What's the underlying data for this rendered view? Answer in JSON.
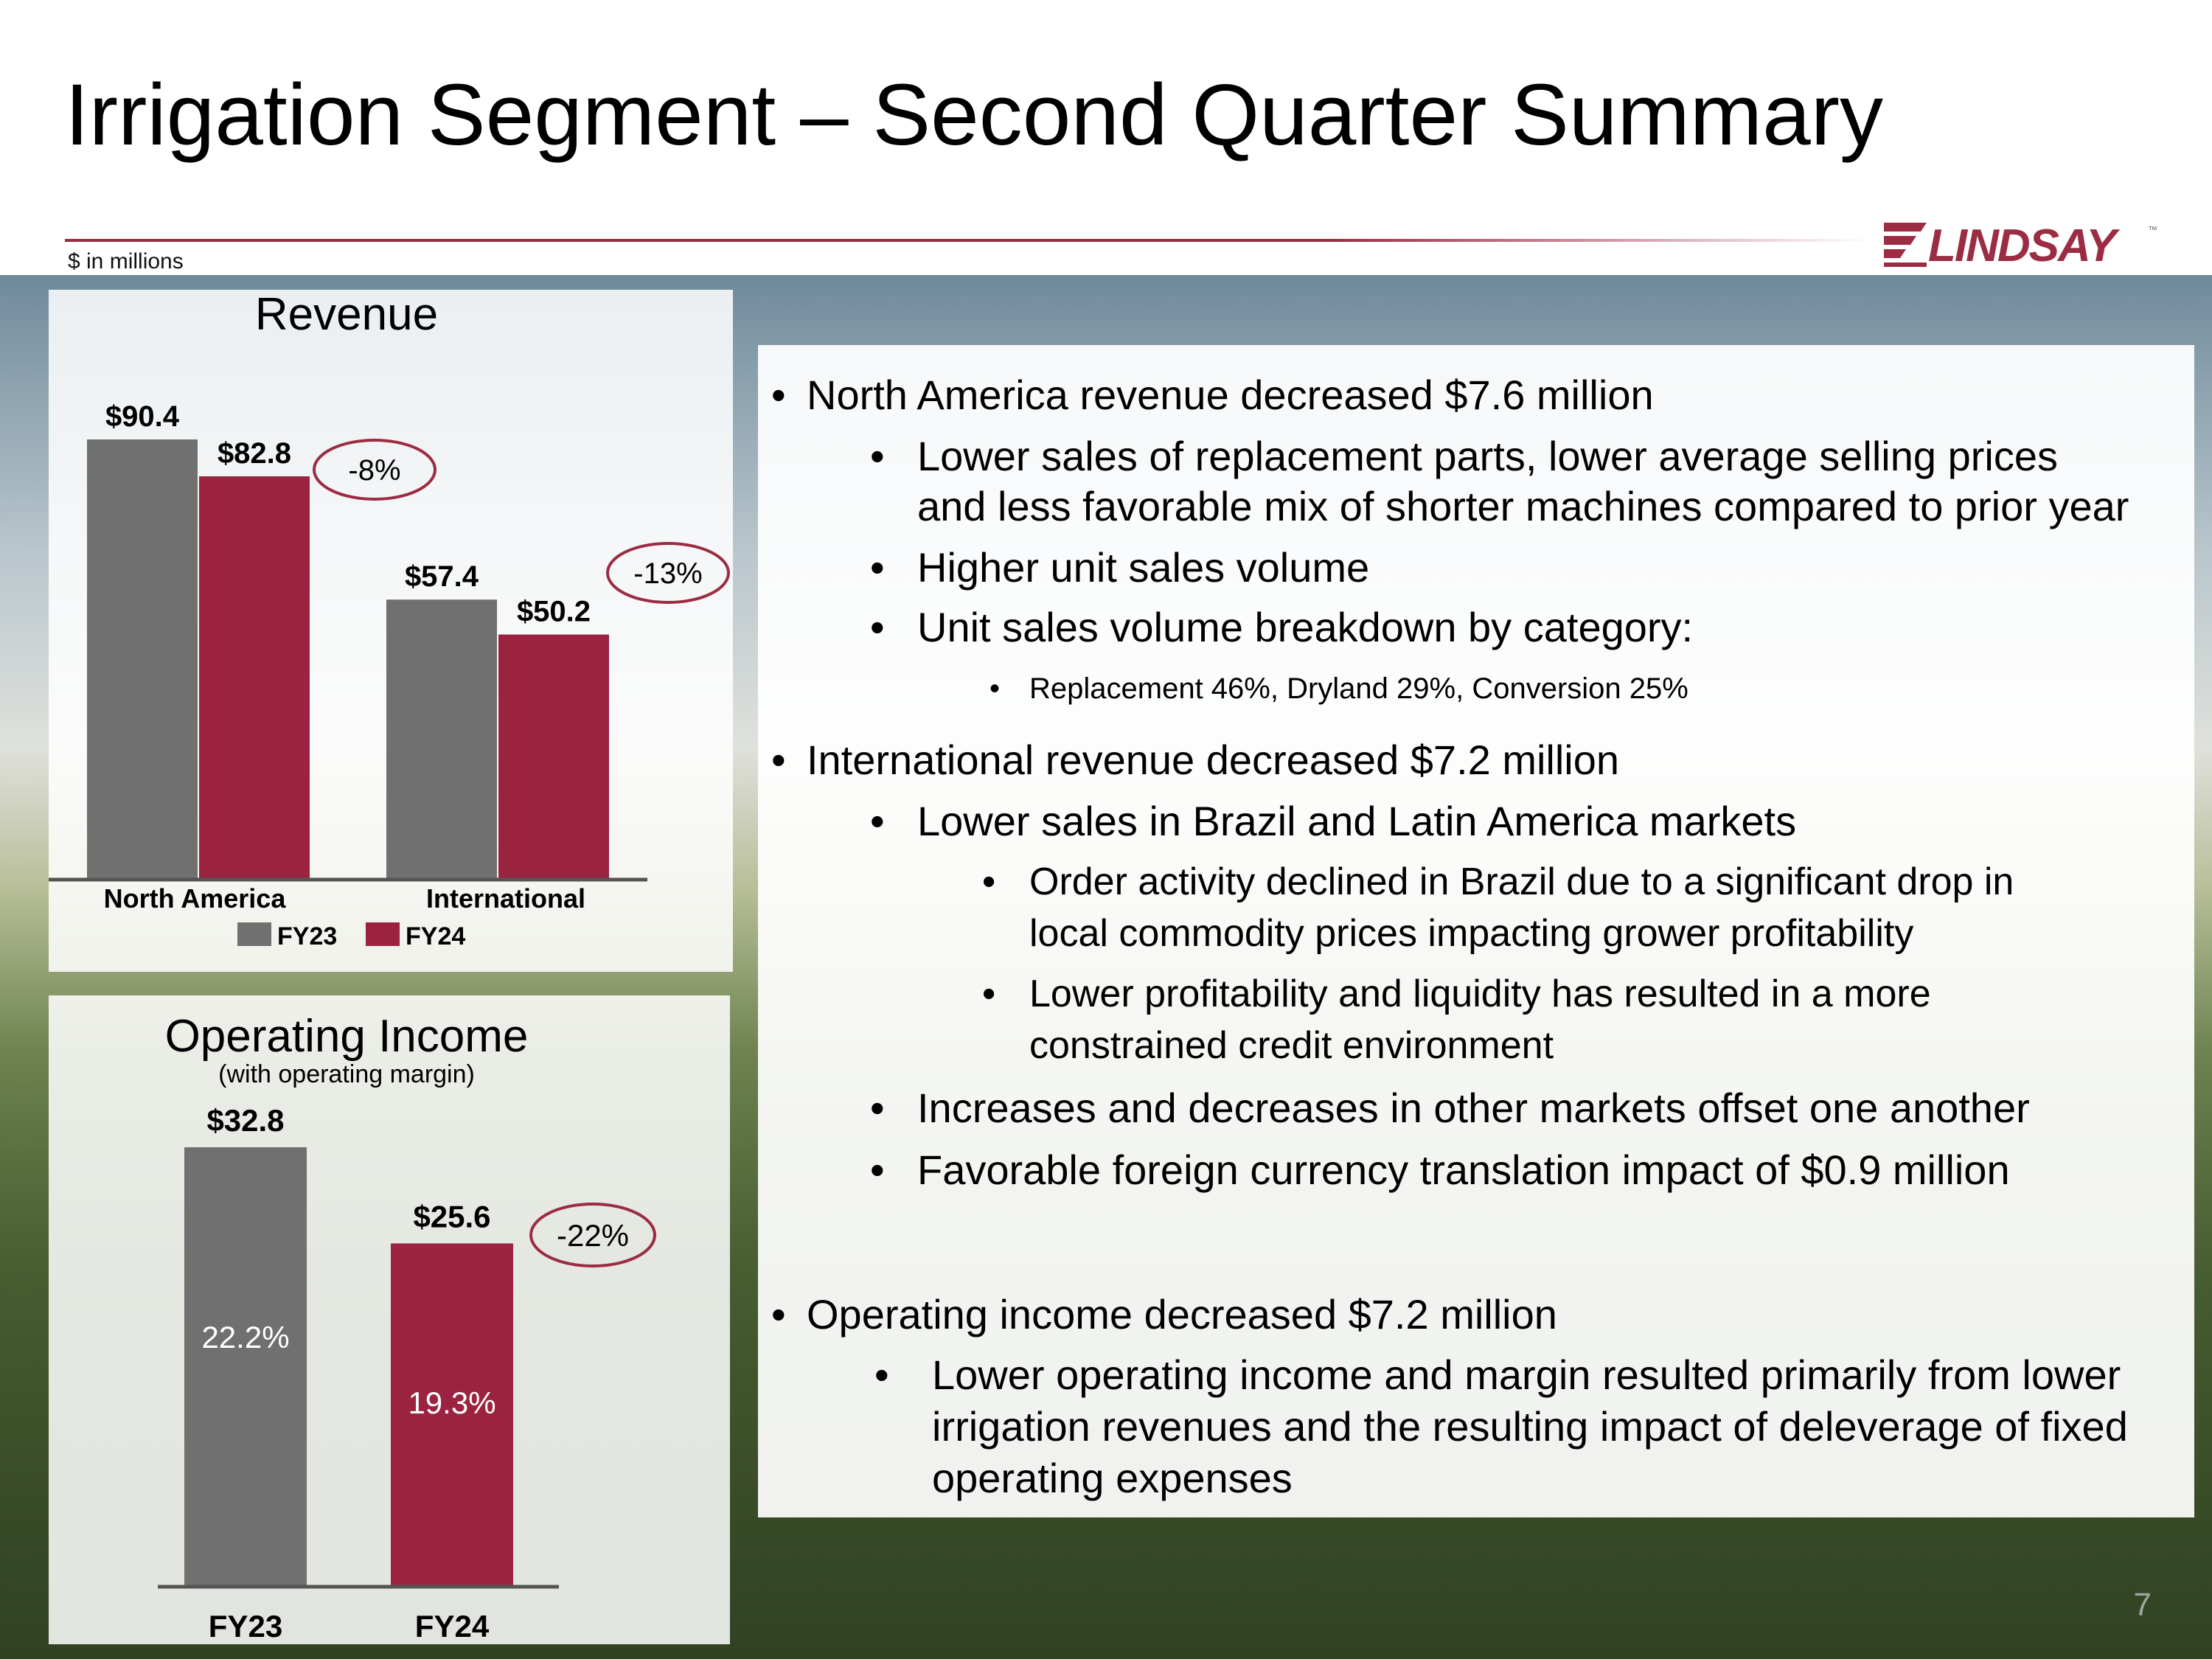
{
  "page": {
    "title": "Irrigation Segment – Second Quarter Summary",
    "units_note": "$ in millions",
    "logo_text": "LINDSAY",
    "logo_tm": "™",
    "page_number": "7",
    "colors": {
      "fy23": "#707070",
      "fy24": "#9b2340",
      "accent": "#9b2c43"
    }
  },
  "chart_data": [
    {
      "type": "bar",
      "title": "Revenue",
      "categories": [
        "North America",
        "International"
      ],
      "series": [
        {
          "name": "FY23",
          "values": [
            90.4,
            57.4
          ],
          "labels": [
            "$90.4",
            "$57.4"
          ]
        },
        {
          "name": "FY24",
          "values": [
            82.8,
            50.2
          ],
          "labels": [
            "$82.8",
            "$50.2"
          ]
        }
      ],
      "annotations": [
        "-8%",
        "-13%"
      ],
      "legend": "bottom",
      "grid": false
    },
    {
      "type": "bar",
      "title": "Operating Income",
      "subtitle": "(with operating margin)",
      "categories": [
        "FY23",
        "FY24"
      ],
      "values": [
        32.8,
        25.6
      ],
      "labels": [
        "$32.8",
        "$25.6"
      ],
      "margins": [
        "22.2%",
        "19.3%"
      ],
      "annotations": [
        "-22%"
      ],
      "grid": false
    }
  ],
  "bullets": [
    {
      "level": 1,
      "text": "North America revenue decreased $7.6 million"
    },
    {
      "level": 2,
      "text": "Lower sales of replacement parts, lower average selling prices"
    },
    {
      "level": 2,
      "cont": true,
      "text": "and less favorable mix of shorter machines compared to prior year"
    },
    {
      "level": 2,
      "text": "Higher unit sales volume"
    },
    {
      "level": 2,
      "text": "Unit sales volume breakdown by category:"
    },
    {
      "level": 4,
      "text": "Replacement 46%, Dryland 29%, Conversion 25%"
    },
    {
      "level": 1,
      "text": "International revenue decreased $7.2 million"
    },
    {
      "level": 2,
      "text": "Lower sales in Brazil and Latin America markets"
    },
    {
      "level": 3,
      "text": "Order activity declined in Brazil due to a significant drop in"
    },
    {
      "level": 3,
      "cont": true,
      "text": "local commodity prices impacting grower profitability"
    },
    {
      "level": 3,
      "text": "Lower profitability and liquidity has resulted in a more"
    },
    {
      "level": 3,
      "cont": true,
      "text": "constrained credit environment"
    },
    {
      "level": 2,
      "text": "Increases and decreases in other markets offset one another"
    },
    {
      "level": 2,
      "text": "Favorable foreign currency translation impact of $0.9 million"
    },
    {
      "level": 1,
      "text": "Operating income decreased $7.2 million"
    },
    {
      "level": 5,
      "text": "Lower operating income and margin resulted primarily from lower"
    },
    {
      "level": 5,
      "cont": true,
      "text": "irrigation revenues and the resulting impact of deleverage of fixed"
    },
    {
      "level": 5,
      "cont": true,
      "text": "operating expenses"
    }
  ]
}
